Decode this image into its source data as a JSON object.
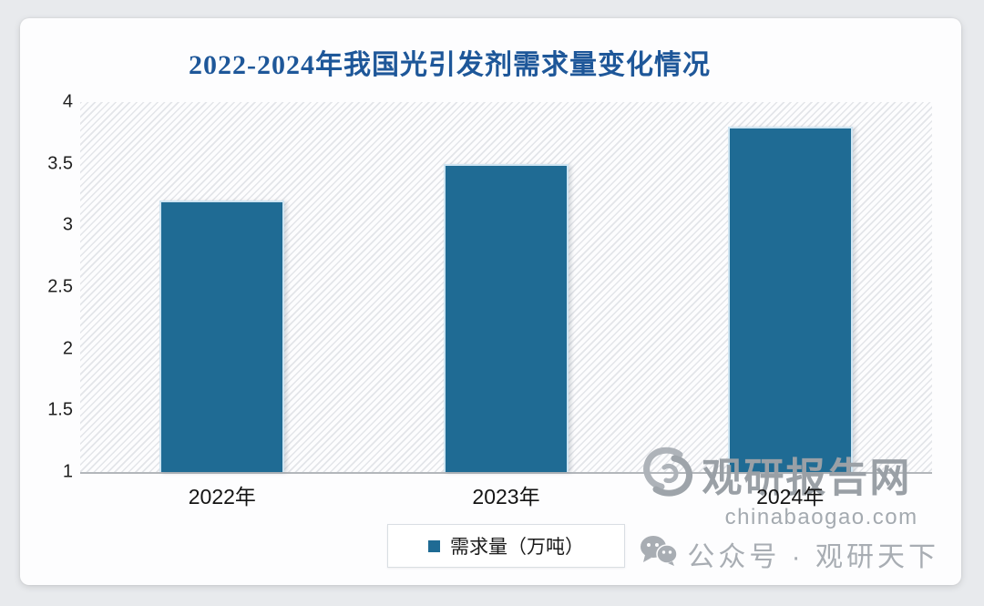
{
  "chart_data": {
    "type": "bar",
    "title": "2022-2024年我国光引发剂需求量变化情况",
    "categories": [
      "2022年",
      "2023年",
      "2024年"
    ],
    "series": [
      {
        "name": "需求量（万吨）",
        "values": [
          3.2,
          3.5,
          3.8
        ]
      }
    ],
    "ylim": [
      1,
      4
    ],
    "yticks": [
      4,
      3.5,
      3,
      2.5,
      2,
      1.5,
      1
    ],
    "xlabel": "",
    "ylabel": "",
    "grid": false,
    "legend_position": "bottom-center",
    "bar_color": "#1f6b94",
    "bar_border_color": "#cfe5f2",
    "title_color": "#1e5799",
    "plot_background": "diagonal-hatch"
  },
  "legend": {
    "label": "需求量（万吨）",
    "marker": "square",
    "marker_color": "#1f6b94"
  },
  "watermark": {
    "brand_name": "观研报告网",
    "brand_domain": "chinabaogao.com",
    "wechat_line": "公众号 · 观研天下"
  },
  "colors": {
    "card_background": "#fdfdfe",
    "page_background": "#e8eaed",
    "axis_line": "#b3b7bb",
    "watermark_gray": "#9aa0a6"
  }
}
